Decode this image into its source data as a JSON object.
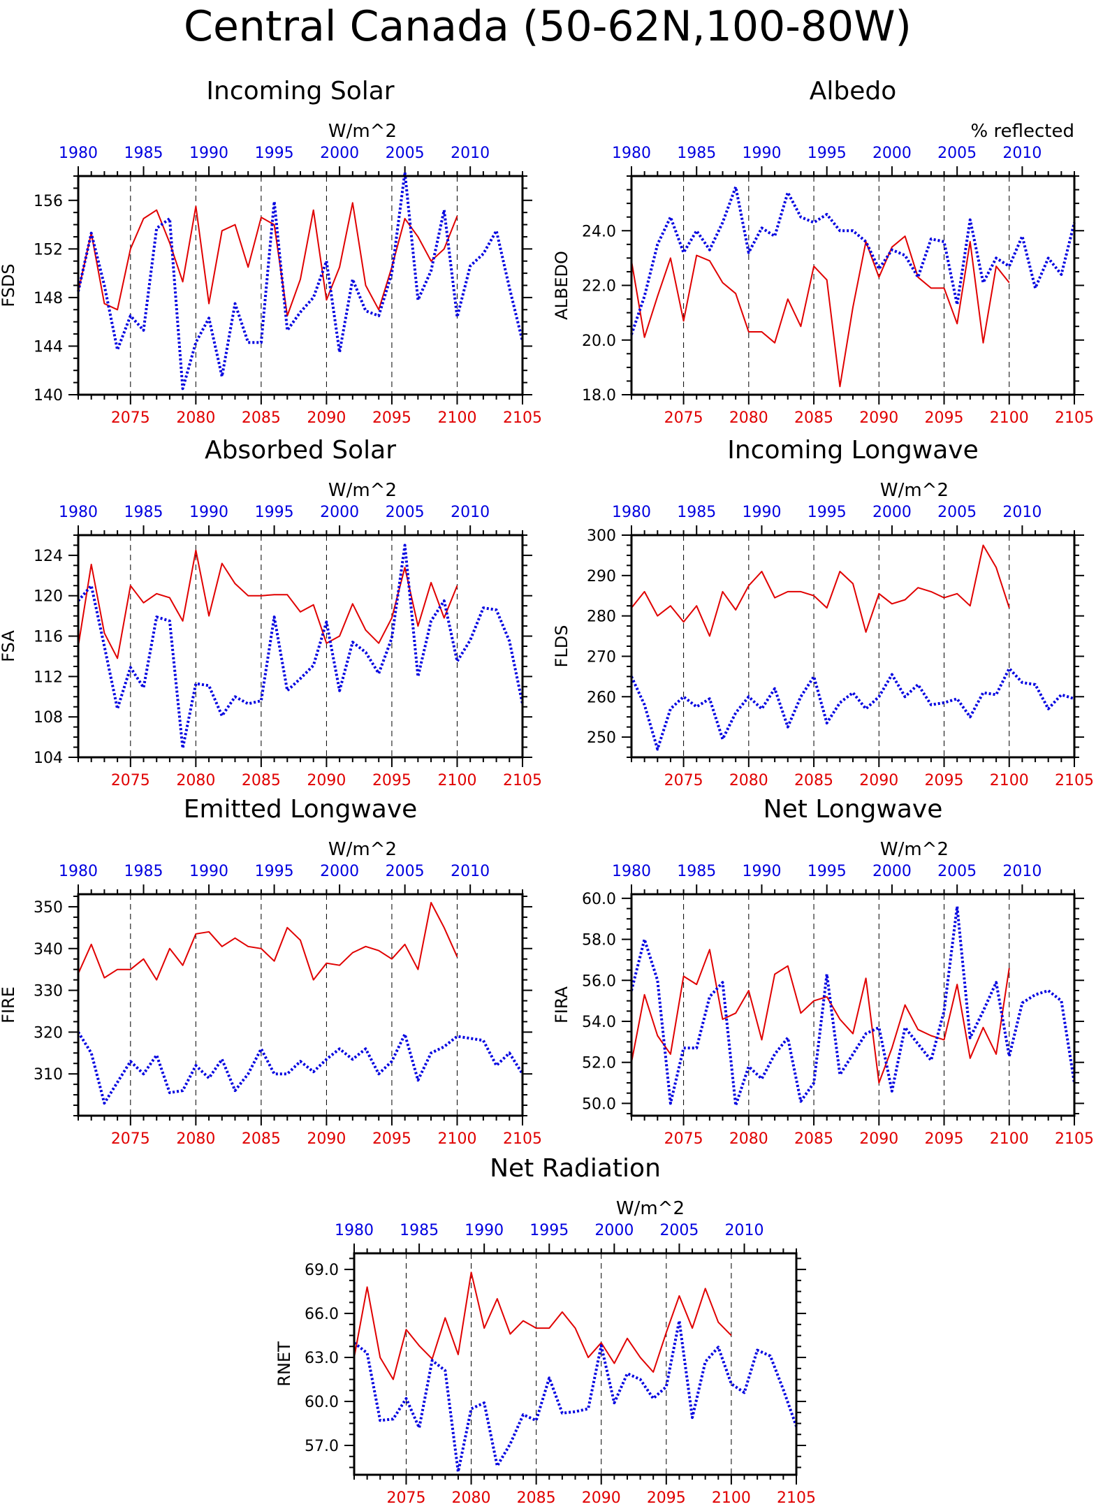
{
  "figure": {
    "title": "Central Canada (50-62N,100-80W)"
  },
  "colors": {
    "future": "#e00000",
    "historical": "#0000e0",
    "axis": "#000000"
  },
  "chart_data": [
    {
      "id": "fsds",
      "type": "line",
      "title": "Incoming Solar",
      "units": "W/m^2",
      "ylabel": "FSDS",
      "ylim": [
        140,
        158
      ],
      "yticks": [
        "140",
        "144",
        "148",
        "152",
        "156"
      ],
      "bottom_axis": {
        "range": [
          2071,
          2105
        ],
        "ticks": [
          "2075",
          "2080",
          "2085",
          "2090",
          "2095",
          "2100",
          "2105"
        ]
      },
      "top_axis": {
        "range": [
          1980,
          2014
        ],
        "ticks": [
          "1980",
          "1985",
          "1990",
          "1995",
          "2000",
          "2005",
          "2010"
        ]
      },
      "series": [
        {
          "key": "future",
          "axis": "bottom",
          "style": "solid",
          "x_start": 2071,
          "values": [
            148.5,
            153.3,
            147.5,
            147.0,
            152.0,
            154.5,
            155.2,
            152.5,
            149.3,
            155.5,
            147.5,
            153.5,
            154.0,
            150.5,
            154.6,
            154.0,
            146.5,
            149.5,
            155.2,
            147.8,
            150.5,
            155.8,
            149.0,
            147.0,
            150.5,
            154.5,
            153.0,
            151.0,
            152.0,
            154.7
          ]
        },
        {
          "key": "historical",
          "axis": "top",
          "style": "dotted",
          "x_start": 1980,
          "values": [
            148.5,
            153.3,
            149.0,
            143.7,
            146.5,
            145.3,
            153.7,
            154.5,
            140.5,
            144.3,
            146.3,
            141.5,
            147.5,
            144.3,
            144.3,
            155.9,
            145.3,
            146.8,
            148.0,
            151.0,
            143.5,
            149.5,
            146.9,
            146.5,
            150.0,
            158.3,
            147.8,
            150.2,
            155.2,
            146.4,
            150.6,
            151.6,
            153.5,
            148.8,
            144.4
          ]
        }
      ]
    },
    {
      "id": "albedo",
      "type": "line",
      "title": "Albedo",
      "units": "% reflected",
      "ylabel": "ALBEDO",
      "ylim": [
        18,
        26
      ],
      "yticks": [
        "18.0",
        "20.0",
        "22.0",
        "24.0"
      ],
      "bottom_axis": {
        "range": [
          2071,
          2105
        ],
        "ticks": [
          "2075",
          "2080",
          "2085",
          "2090",
          "2095",
          "2100",
          "2105"
        ]
      },
      "top_axis": {
        "range": [
          1980,
          2014
        ],
        "ticks": [
          "1980",
          "1985",
          "1990",
          "1995",
          "2000",
          "2005",
          "2010"
        ]
      },
      "series": [
        {
          "key": "future",
          "axis": "bottom",
          "style": "solid",
          "x_start": 2071,
          "values": [
            22.9,
            20.1,
            21.6,
            23.0,
            20.7,
            23.1,
            22.9,
            22.1,
            21.7,
            20.3,
            20.3,
            19.9,
            21.5,
            20.5,
            22.7,
            22.2,
            18.3,
            21.2,
            23.6,
            22.3,
            23.4,
            23.8,
            22.3,
            21.9,
            21.9,
            20.6,
            23.6,
            19.9,
            22.7,
            22.1
          ]
        },
        {
          "key": "historical",
          "axis": "top",
          "style": "dotted",
          "x_start": 1980,
          "values": [
            20.2,
            21.6,
            23.5,
            24.5,
            23.2,
            24.0,
            23.3,
            24.3,
            25.6,
            23.2,
            24.1,
            23.8,
            25.4,
            24.5,
            24.3,
            24.6,
            24.0,
            24.0,
            23.6,
            22.6,
            23.3,
            23.1,
            22.3,
            23.7,
            23.6,
            21.3,
            24.4,
            22.1,
            23.0,
            22.7,
            23.8,
            21.9,
            23.0,
            22.4,
            24.3
          ]
        }
      ]
    },
    {
      "id": "fsa",
      "type": "line",
      "title": "Absorbed Solar",
      "units": "W/m^2",
      "ylabel": "FSA",
      "ylim": [
        104,
        126
      ],
      "yticks": [
        "104",
        "108",
        "112",
        "116",
        "120",
        "124"
      ],
      "bottom_axis": {
        "range": [
          2071,
          2105
        ],
        "ticks": [
          "2075",
          "2080",
          "2085",
          "2090",
          "2095",
          "2100",
          "2105"
        ]
      },
      "top_axis": {
        "range": [
          1980,
          2014
        ],
        "ticks": [
          "1980",
          "1985",
          "1990",
          "1995",
          "2000",
          "2005",
          "2010"
        ]
      },
      "series": [
        {
          "key": "future",
          "axis": "bottom",
          "style": "solid",
          "x_start": 2071,
          "values": [
            115.0,
            123.1,
            116.3,
            113.8,
            121.0,
            119.3,
            120.2,
            119.8,
            117.5,
            124.5,
            118.0,
            123.2,
            121.2,
            120.0,
            120.0,
            120.1,
            120.1,
            118.4,
            119.1,
            115.3,
            116.0,
            119.2,
            116.6,
            115.3,
            117.8,
            122.8,
            117.0,
            121.3,
            117.8,
            121.0
          ]
        },
        {
          "key": "historical",
          "axis": "top",
          "style": "dotted",
          "x_start": 1980,
          "values": [
            119.5,
            121.0,
            115.0,
            108.8,
            112.9,
            110.9,
            117.9,
            117.5,
            104.9,
            111.3,
            111.1,
            108.1,
            110.0,
            109.3,
            109.6,
            117.9,
            110.6,
            111.8,
            113.1,
            117.4,
            110.6,
            115.4,
            114.4,
            112.3,
            115.8,
            125.0,
            112.0,
            117.5,
            119.5,
            113.5,
            115.6,
            118.8,
            118.6,
            115.5,
            109.3
          ]
        }
      ]
    },
    {
      "id": "flds",
      "type": "line",
      "title": "Incoming Longwave",
      "units": "W/m^2",
      "ylabel": "FLDS",
      "ylim": [
        245,
        300
      ],
      "yticks": [
        "250",
        "260",
        "270",
        "280",
        "290",
        "300"
      ],
      "bottom_axis": {
        "range": [
          2071,
          2105
        ],
        "ticks": [
          "2075",
          "2080",
          "2085",
          "2090",
          "2095",
          "2100",
          "2105"
        ]
      },
      "top_axis": {
        "range": [
          1980,
          2014
        ],
        "ticks": [
          "1980",
          "1985",
          "1990",
          "1995",
          "2000",
          "2005",
          "2010"
        ]
      },
      "series": [
        {
          "key": "future",
          "axis": "bottom",
          "style": "solid",
          "x_start": 2071,
          "values": [
            282,
            286,
            280,
            282.5,
            278.5,
            282.5,
            275,
            286,
            281.5,
            287.5,
            291,
            284.5,
            286,
            286,
            285,
            282,
            291,
            288,
            276,
            285.5,
            283,
            284,
            287,
            286,
            284.5,
            285.5,
            282.5,
            297.5,
            292,
            282
          ]
        },
        {
          "key": "historical",
          "axis": "top",
          "style": "dotted",
          "x_start": 1980,
          "values": [
            265,
            258,
            247,
            257,
            260,
            257.5,
            259.5,
            249.5,
            256,
            260,
            257,
            262,
            252.5,
            260,
            265,
            253.5,
            258.5,
            261,
            257,
            260,
            265.5,
            260,
            263,
            258,
            258.5,
            259.5,
            255,
            261,
            260.5,
            267,
            263.5,
            263,
            257,
            260.5,
            259.5
          ]
        }
      ]
    },
    {
      "id": "fire",
      "type": "line",
      "title": "Emitted Longwave",
      "units": "W/m^2",
      "ylabel": "FIRE",
      "ylim": [
        300,
        353
      ],
      "yticks": [
        "310",
        "320",
        "330",
        "340",
        "350"
      ],
      "bottom_axis": {
        "range": [
          2071,
          2105
        ],
        "ticks": [
          "2075",
          "2080",
          "2085",
          "2090",
          "2095",
          "2100",
          "2105"
        ]
      },
      "top_axis": {
        "range": [
          1980,
          2014
        ],
        "ticks": [
          "1980",
          "1985",
          "1990",
          "1995",
          "2000",
          "2005",
          "2010"
        ]
      },
      "series": [
        {
          "key": "future",
          "axis": "bottom",
          "style": "solid",
          "x_start": 2071,
          "values": [
            334,
            341,
            333,
            335,
            335,
            337.5,
            332.5,
            340,
            336,
            343.5,
            344,
            340.5,
            342.5,
            340.5,
            340,
            337,
            345,
            342,
            332.5,
            336.5,
            336,
            339,
            340.5,
            339.5,
            337.5,
            341,
            335,
            351,
            345,
            338
          ]
        },
        {
          "key": "historical",
          "axis": "top",
          "style": "dotted",
          "x_start": 1980,
          "values": [
            320,
            315,
            303,
            308,
            313,
            310,
            314.5,
            305.5,
            306,
            312,
            309,
            313.5,
            306,
            310,
            316,
            310,
            310,
            313,
            310.5,
            313.5,
            316,
            313.5,
            316,
            310,
            313,
            319.5,
            308.5,
            315,
            316.5,
            319,
            318.5,
            318,
            312,
            315,
            310
          ]
        }
      ]
    },
    {
      "id": "fira",
      "type": "line",
      "title": "Net Longwave",
      "units": "W/m^2",
      "ylabel": "FIRA",
      "ylim": [
        49.4,
        60.2
      ],
      "yticks": [
        "50.0",
        "52.0",
        "54.0",
        "56.0",
        "58.0",
        "60.0"
      ],
      "bottom_axis": {
        "range": [
          2071,
          2105
        ],
        "ticks": [
          "2075",
          "2080",
          "2085",
          "2090",
          "2095",
          "2100",
          "2105"
        ]
      },
      "top_axis": {
        "range": [
          1980,
          2014
        ],
        "ticks": [
          "1980",
          "1985",
          "1990",
          "1995",
          "2000",
          "2005",
          "2010"
        ]
      },
      "series": [
        {
          "key": "future",
          "axis": "bottom",
          "style": "solid",
          "x_start": 2071,
          "values": [
            52,
            55.3,
            53.3,
            52.4,
            56.2,
            55.8,
            57.5,
            54.1,
            54.4,
            55.5,
            53.1,
            56.3,
            56.7,
            54.4,
            55,
            55.2,
            54.1,
            53.4,
            56.1,
            51,
            52.7,
            54.8,
            53.6,
            53.3,
            53.1,
            55.8,
            52.2,
            53.7,
            52.4,
            56.6
          ]
        },
        {
          "key": "historical",
          "axis": "top",
          "style": "dotted",
          "x_start": 1980,
          "values": [
            55.5,
            58,
            56,
            50,
            52.7,
            52.7,
            55.2,
            55.9,
            49.9,
            51.8,
            51.2,
            52.4,
            53.2,
            50.1,
            51,
            56.3,
            51.4,
            52.4,
            53.4,
            53.7,
            50.6,
            53.7,
            52.9,
            52.1,
            54.5,
            59.6,
            53.2,
            54.5,
            55.9,
            52.3,
            54.9,
            55.3,
            55.5,
            55,
            51
          ]
        }
      ]
    },
    {
      "id": "rnet",
      "type": "line",
      "title": "Net Radiation",
      "units": "W/m^2",
      "ylabel": "RNET",
      "ylim": [
        55,
        70.1
      ],
      "yticks": [
        "57.0",
        "60.0",
        "63.0",
        "66.0",
        "69.0"
      ],
      "bottom_axis": {
        "range": [
          2071,
          2105
        ],
        "ticks": [
          "2075",
          "2080",
          "2085",
          "2090",
          "2095",
          "2100",
          "2105"
        ]
      },
      "top_axis": {
        "range": [
          1980,
          2014
        ],
        "ticks": [
          "1980",
          "1985",
          "1990",
          "1995",
          "2000",
          "2005",
          "2010"
        ]
      },
      "series": [
        {
          "key": "future",
          "axis": "bottom",
          "style": "solid",
          "x_start": 2071,
          "values": [
            63,
            67.8,
            63,
            61.5,
            64.9,
            63.8,
            62.9,
            65.7,
            63.2,
            68.8,
            65,
            67,
            64.6,
            65.5,
            65,
            65,
            66.1,
            65,
            63,
            64,
            62.6,
            64.3,
            63,
            62,
            64.7,
            67.2,
            65,
            67.7,
            65.4,
            64.5
          ]
        },
        {
          "key": "historical",
          "axis": "top",
          "style": "dotted",
          "x_start": 1980,
          "values": [
            64,
            63.3,
            58.7,
            58.8,
            60.2,
            58.2,
            62.8,
            62.1,
            55.2,
            59.5,
            59.9,
            55.6,
            57.1,
            59.1,
            58.7,
            61.6,
            59.2,
            59.3,
            59.5,
            63.8,
            59.9,
            61.9,
            61.5,
            60.2,
            61,
            65.5,
            58.9,
            62.7,
            63.7,
            61.2,
            60.6,
            63.5,
            63.1,
            60.8,
            58.3
          ]
        }
      ]
    }
  ]
}
